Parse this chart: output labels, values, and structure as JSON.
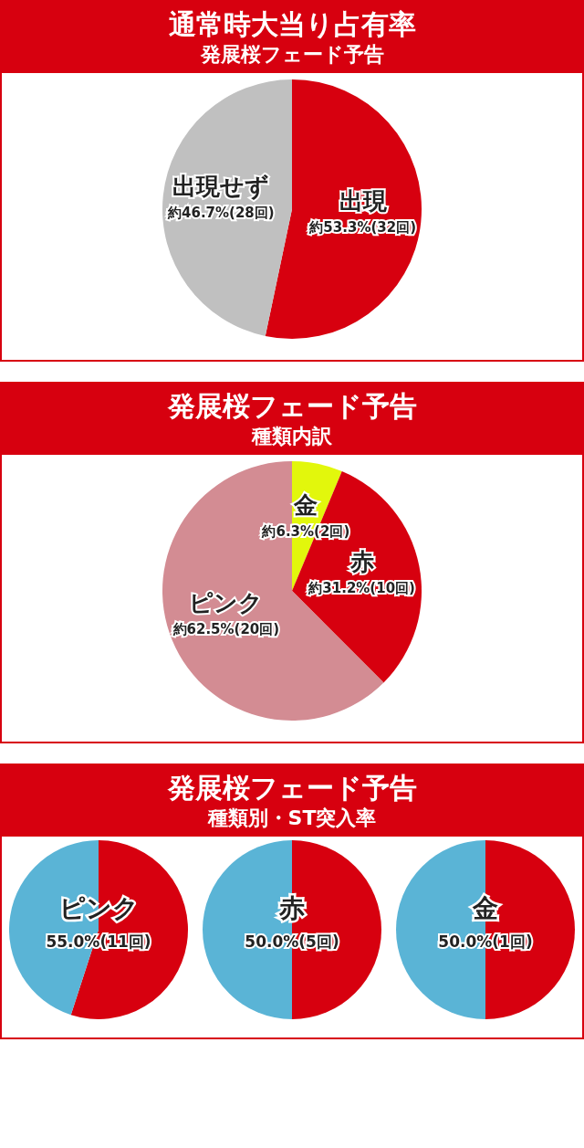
{
  "chart_data": [
    {
      "type": "pie",
      "title": "通常時大当り占有率",
      "subtitle": "発展桜フェード予告",
      "categories": [
        "出現",
        "出現せず"
      ],
      "values": [
        53.3,
        46.7
      ],
      "colors": [
        "#d7000f",
        "#c0c0c0"
      ],
      "value_labels": [
        "約53.3%(32回)",
        "約46.7%(28回)"
      ]
    },
    {
      "type": "pie",
      "title": "発展桜フェード予告",
      "subtitle": "種類内訳",
      "categories": [
        "金",
        "赤",
        "ピンク"
      ],
      "values": [
        6.3,
        31.2,
        62.5
      ],
      "colors": [
        "#e2f70c",
        "#d7000f",
        "#d38c93"
      ],
      "value_labels": [
        "約6.3%(2回)",
        "約31.2%(10回)",
        "約62.5%(20回)"
      ]
    },
    {
      "type": "other",
      "title": "発展桜フェード予告",
      "subtitle": "種類別・ST突入率"
    },
    {
      "type": "pie",
      "title": "ピンク",
      "categories": [
        null,
        null
      ],
      "values": [
        55.0,
        45.0
      ],
      "colors": [
        "#d7000f",
        "#5ab4d6"
      ],
      "value_labels": [
        "55.0%(11回)",
        null
      ]
    },
    {
      "type": "pie",
      "title": "赤",
      "categories": [
        null,
        null
      ],
      "values": [
        50.0,
        50.0
      ],
      "colors": [
        "#d7000f",
        "#5ab4d6"
      ],
      "value_labels": [
        "50.0%(5回)",
        null
      ]
    },
    {
      "type": "pie",
      "title": "金",
      "categories": [
        null,
        null
      ],
      "values": [
        50.0,
        50.0
      ],
      "colors": [
        "#d7000f",
        "#5ab4d6"
      ],
      "value_labels": [
        "50.0%(1回)",
        null
      ]
    }
  ]
}
